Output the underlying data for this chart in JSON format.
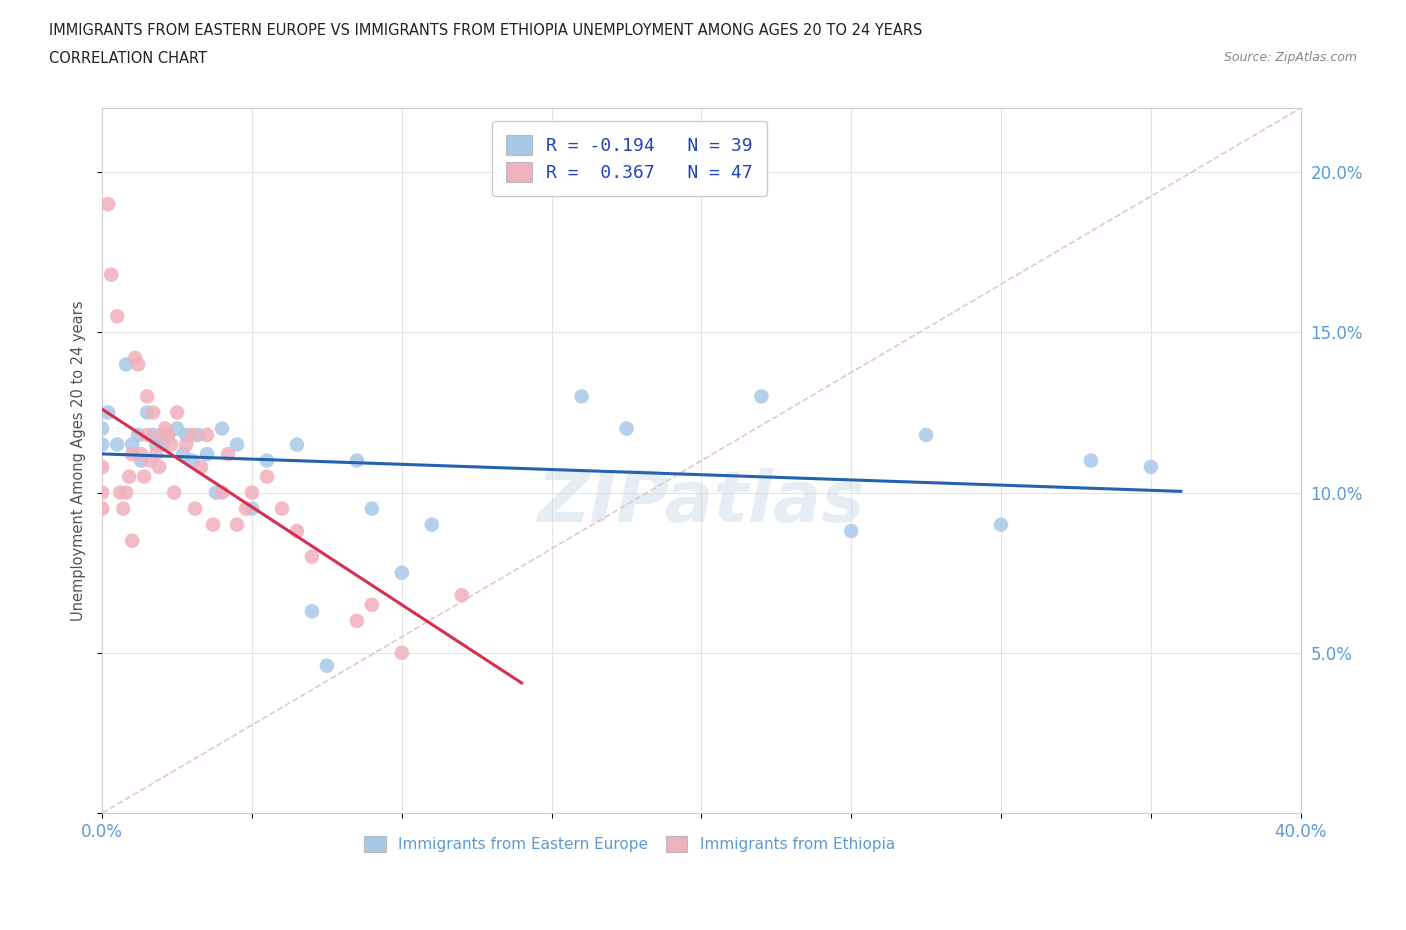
{
  "title_line1": "IMMIGRANTS FROM EASTERN EUROPE VS IMMIGRANTS FROM ETHIOPIA UNEMPLOYMENT AMONG AGES 20 TO 24 YEARS",
  "title_line2": "CORRELATION CHART",
  "source_text": "Source: ZipAtlas.com",
  "ylabel": "Unemployment Among Ages 20 to 24 years",
  "xlim": [
    0.0,
    0.4
  ],
  "ylim": [
    0.0,
    0.22
  ],
  "xtick_positions": [
    0.0,
    0.05,
    0.1,
    0.15,
    0.2,
    0.25,
    0.3,
    0.35,
    0.4
  ],
  "xticklabels": [
    "0.0%",
    "",
    "",
    "",
    "",
    "",
    "",
    "",
    "40.0%"
  ],
  "ytick_positions": [
    0.0,
    0.05,
    0.1,
    0.15,
    0.2
  ],
  "yticklabels": [
    "",
    "5.0%",
    "10.0%",
    "15.0%",
    "20.0%"
  ],
  "watermark": "ZIPatlas",
  "color_eastern": "#a8c8e8",
  "color_ethiopia": "#f0b0bc",
  "trendline_eastern_color": "#2563b0",
  "trendline_ethiopia_color": "#d63050",
  "diagonal_color": "#e0b8c0",
  "eastern_europe_x": [
    0.0,
    0.0,
    0.002,
    0.005,
    0.008,
    0.01,
    0.012,
    0.013,
    0.015,
    0.017,
    0.018,
    0.02,
    0.022,
    0.025,
    0.027,
    0.028,
    0.03,
    0.032,
    0.035,
    0.038,
    0.04,
    0.045,
    0.05,
    0.055,
    0.065,
    0.07,
    0.075,
    0.085,
    0.09,
    0.1,
    0.11,
    0.16,
    0.175,
    0.22,
    0.25,
    0.275,
    0.3,
    0.33,
    0.35
  ],
  "eastern_europe_y": [
    0.115,
    0.12,
    0.125,
    0.115,
    0.14,
    0.115,
    0.118,
    0.11,
    0.125,
    0.118,
    0.115,
    0.115,
    0.118,
    0.12,
    0.112,
    0.118,
    0.11,
    0.118,
    0.112,
    0.1,
    0.12,
    0.115,
    0.095,
    0.11,
    0.115,
    0.063,
    0.046,
    0.11,
    0.095,
    0.075,
    0.09,
    0.13,
    0.12,
    0.13,
    0.088,
    0.118,
    0.09,
    0.11,
    0.108
  ],
  "ethiopia_x": [
    0.0,
    0.0,
    0.0,
    0.002,
    0.003,
    0.005,
    0.006,
    0.007,
    0.008,
    0.009,
    0.01,
    0.01,
    0.011,
    0.012,
    0.013,
    0.014,
    0.015,
    0.015,
    0.016,
    0.017,
    0.018,
    0.019,
    0.02,
    0.021,
    0.022,
    0.023,
    0.024,
    0.025,
    0.028,
    0.03,
    0.031,
    0.033,
    0.035,
    0.037,
    0.04,
    0.042,
    0.045,
    0.048,
    0.05,
    0.055,
    0.06,
    0.065,
    0.07,
    0.085,
    0.09,
    0.1,
    0.12
  ],
  "ethiopia_y": [
    0.095,
    0.1,
    0.108,
    0.19,
    0.168,
    0.155,
    0.1,
    0.095,
    0.1,
    0.105,
    0.085,
    0.112,
    0.142,
    0.14,
    0.112,
    0.105,
    0.118,
    0.13,
    0.11,
    0.125,
    0.112,
    0.108,
    0.118,
    0.12,
    0.118,
    0.115,
    0.1,
    0.125,
    0.115,
    0.118,
    0.095,
    0.108,
    0.118,
    0.09,
    0.1,
    0.112,
    0.09,
    0.095,
    0.1,
    0.105,
    0.095,
    0.088,
    0.08,
    0.06,
    0.065,
    0.05,
    0.068
  ]
}
